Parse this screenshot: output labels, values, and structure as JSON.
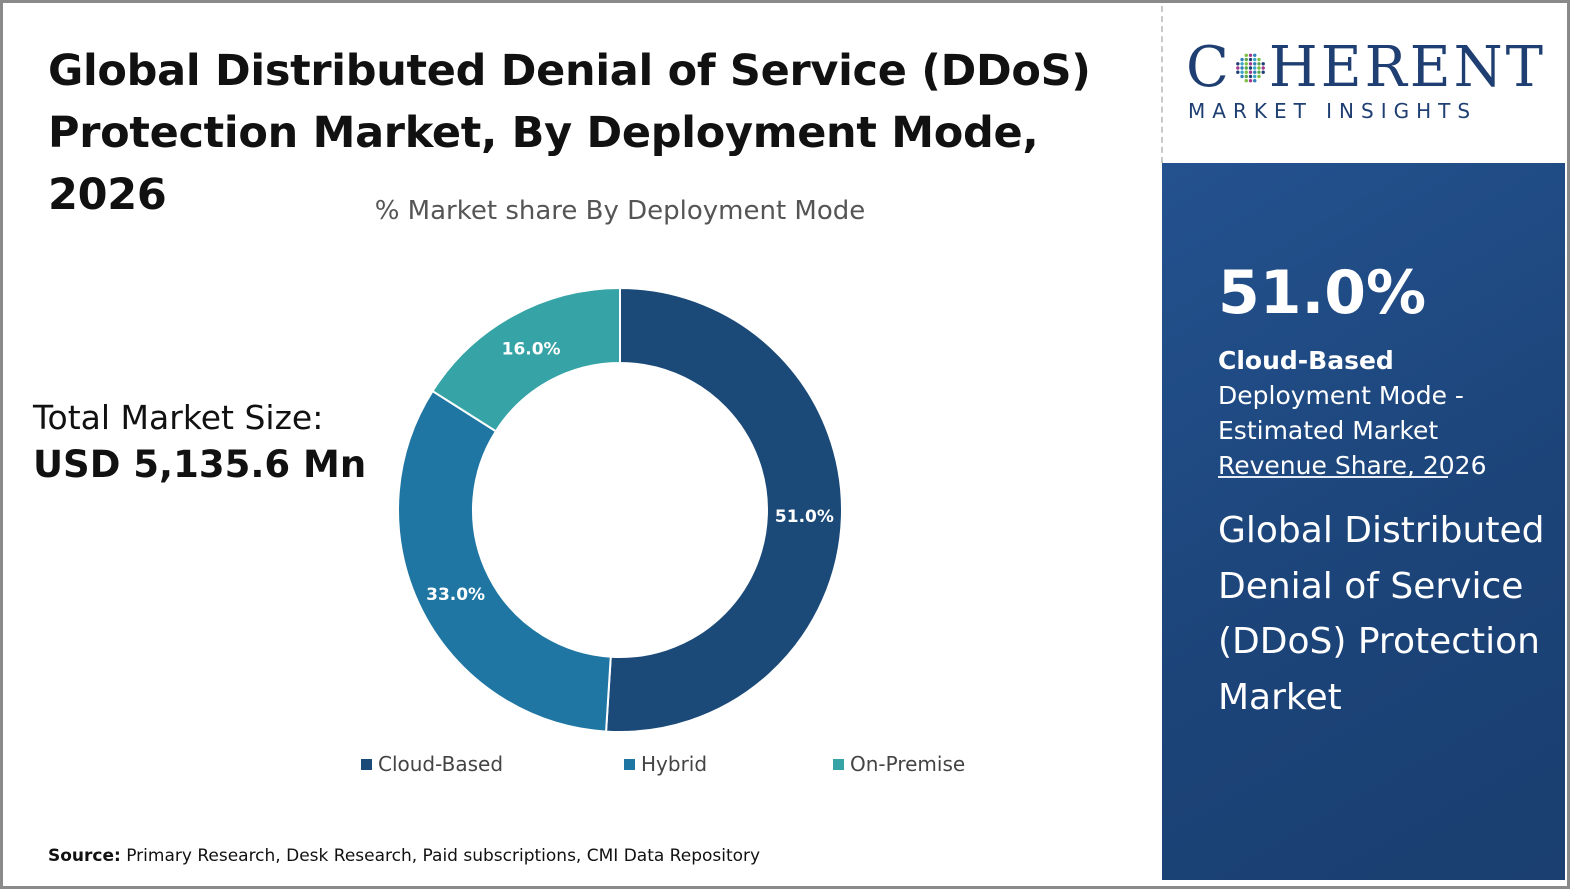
{
  "header": {
    "title_line1": "Global Distributed Denial of Service (DDoS)",
    "title_line2": "Protection Market, By Deployment Mode, 2026"
  },
  "market_size": {
    "label": "Total Market Size:",
    "value": "USD 5,135.6 Mn"
  },
  "source": {
    "label": "Source:",
    "text": "Primary Research, Desk Research, Paid subscriptions, CMI Data Repository"
  },
  "logo": {
    "main_before": "C",
    "main_after": "HERENT",
    "sub": "MARKET INSIGHTS",
    "color": "#1f3f72"
  },
  "panel": {
    "big_value": "51.0%",
    "desc_bold": "Cloud-Based",
    "desc_rest": " Deployment Mode - Estimated Market Revenue Share, 2026",
    "market_name": "Global Distributed Denial of Service (DDoS) Protection Market",
    "background": "#1f4a84"
  },
  "chart_data": {
    "type": "pie",
    "subtype": "donut",
    "title": "% Market share By Deployment Mode",
    "categories": [
      "Cloud-Based",
      "Hybrid",
      "On-Premise"
    ],
    "values": [
      51.0,
      33.0,
      16.0
    ],
    "labels": [
      "51.0%",
      "33.0%",
      "16.0%"
    ],
    "colors": [
      "#1b4a78",
      "#1f76a3",
      "#36a3a6"
    ],
    "legend_position": "bottom",
    "start": "top, clockwise"
  }
}
